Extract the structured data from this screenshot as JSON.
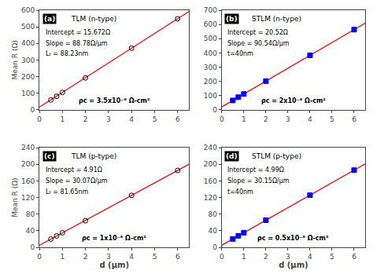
{
  "chart_data": [
    {
      "type": "scatter",
      "title": "TLM (n-type)",
      "ylabel": "Mean R (Ω)",
      "grid": false,
      "annotations": [
        "(a)",
        "Intercept = 15.672Ω",
        "Slope = 88.78Ω/μm",
        "Lₜ = 88.23nm",
        "ρᴄ = 3.5x10⁻⁸ Ω-cm²"
      ],
      "series": [
        {
          "type": "line",
          "x": [
            0,
            6.5
          ],
          "values": [
            15.672,
            592.742
          ],
          "color": "red"
        },
        {
          "type": "scatter",
          "x": [
            0.5,
            0.75,
            1.0,
            2.0,
            4.0,
            6.0
          ],
          "values": [
            59.06,
            81.26,
            104.45,
            192.23,
            370.79,
            548.35
          ],
          "color": "black",
          "marker": "circle-open"
        }
      ],
      "xlim": [
        0,
        6.5
      ],
      "xticks": [
        0,
        1,
        2,
        3,
        4,
        5,
        6
      ],
      "ylim": [
        0,
        600
      ],
      "yticks": [
        0,
        100,
        200,
        300,
        400,
        500,
        600
      ]
    },
    {
      "type": "scatter",
      "title": "STLM (n-type)",
      "grid": false,
      "annotations": [
        "(b)",
        "Intercept = 20.52Ω",
        "Slope = 90.54Ω/μm",
        "t=40nm",
        "ρᴄ = 2x10⁻⁸ Ω-cm²"
      ],
      "series": [
        {
          "type": "line",
          "x": [
            0,
            6.5
          ],
          "values": [
            20.52,
            609.03
          ],
          "color": "red"
        },
        {
          "type": "scatter",
          "x": [
            0.5,
            0.75,
            1.0,
            2.0,
            4.0,
            6.0
          ],
          "values": [
            65.79,
            88.42,
            111.06,
            201.6,
            382.68,
            563.76
          ],
          "color": "blue",
          "marker": "square"
        }
      ],
      "xlim": [
        0,
        6.5
      ],
      "xticks": [
        0,
        1,
        2,
        3,
        4,
        5,
        6
      ],
      "ylim": [
        0,
        700
      ],
      "yticks": [
        0,
        100,
        200,
        300,
        400,
        500,
        600,
        700
      ]
    },
    {
      "type": "scatter",
      "title": "TLM (p-type)",
      "ylabel": "Mean R (Ω)",
      "xlabel": "d (μm)",
      "grid": false,
      "annotations": [
        "(c)",
        "Intercept = 4.91Ω",
        "Slope = 30.07Ω/μm",
        "Lₜ = 81.65nm",
        "ρᴄ = 1x10⁻⁸ Ω-cm²"
      ],
      "series": [
        {
          "type": "line",
          "x": [
            0,
            6.5
          ],
          "values": [
            4.91,
            200.365
          ],
          "color": "red"
        },
        {
          "type": "scatter",
          "x": [
            0.5,
            0.75,
            1.0,
            2.0,
            4.0,
            6.0
          ],
          "values": [
            19.95,
            27.45,
            34.98,
            64.05,
            125.19,
            185.33
          ],
          "color": "black",
          "marker": "circle-open"
        }
      ],
      "xlim": [
        0,
        6.5
      ],
      "xticks": [
        0,
        1,
        2,
        3,
        4,
        5,
        6
      ],
      "ylim": [
        0,
        240
      ],
      "yticks": [
        0,
        40,
        80,
        120,
        160,
        200,
        240
      ]
    },
    {
      "type": "scatter",
      "title": "STLM (p-type)",
      "xlabel": "d (μm)",
      "grid": false,
      "annotations": [
        "(d)",
        "Intercept = 4.99Ω",
        "Slope = 30.15Ω/μm",
        "t=40nm",
        "ρᴄ = 0.5x10⁻⁸ Ω-cm²"
      ],
      "series": [
        {
          "type": "line",
          "x": [
            0,
            6.5
          ],
          "values": [
            4.99,
            200.965
          ],
          "color": "red"
        },
        {
          "type": "scatter",
          "x": [
            0.5,
            0.75,
            1.0,
            2.0,
            4.0,
            6.0
          ],
          "values": [
            20.07,
            27.61,
            35.14,
            65.29,
            125.59,
            185.89
          ],
          "color": "blue",
          "marker": "square"
        }
      ],
      "xlim": [
        0,
        6.5
      ],
      "xticks": [
        0,
        1,
        2,
        3,
        4,
        5,
        6
      ],
      "ylim": [
        0,
        240
      ],
      "yticks": [
        0,
        40,
        80,
        120,
        160,
        200,
        240
      ]
    }
  ]
}
